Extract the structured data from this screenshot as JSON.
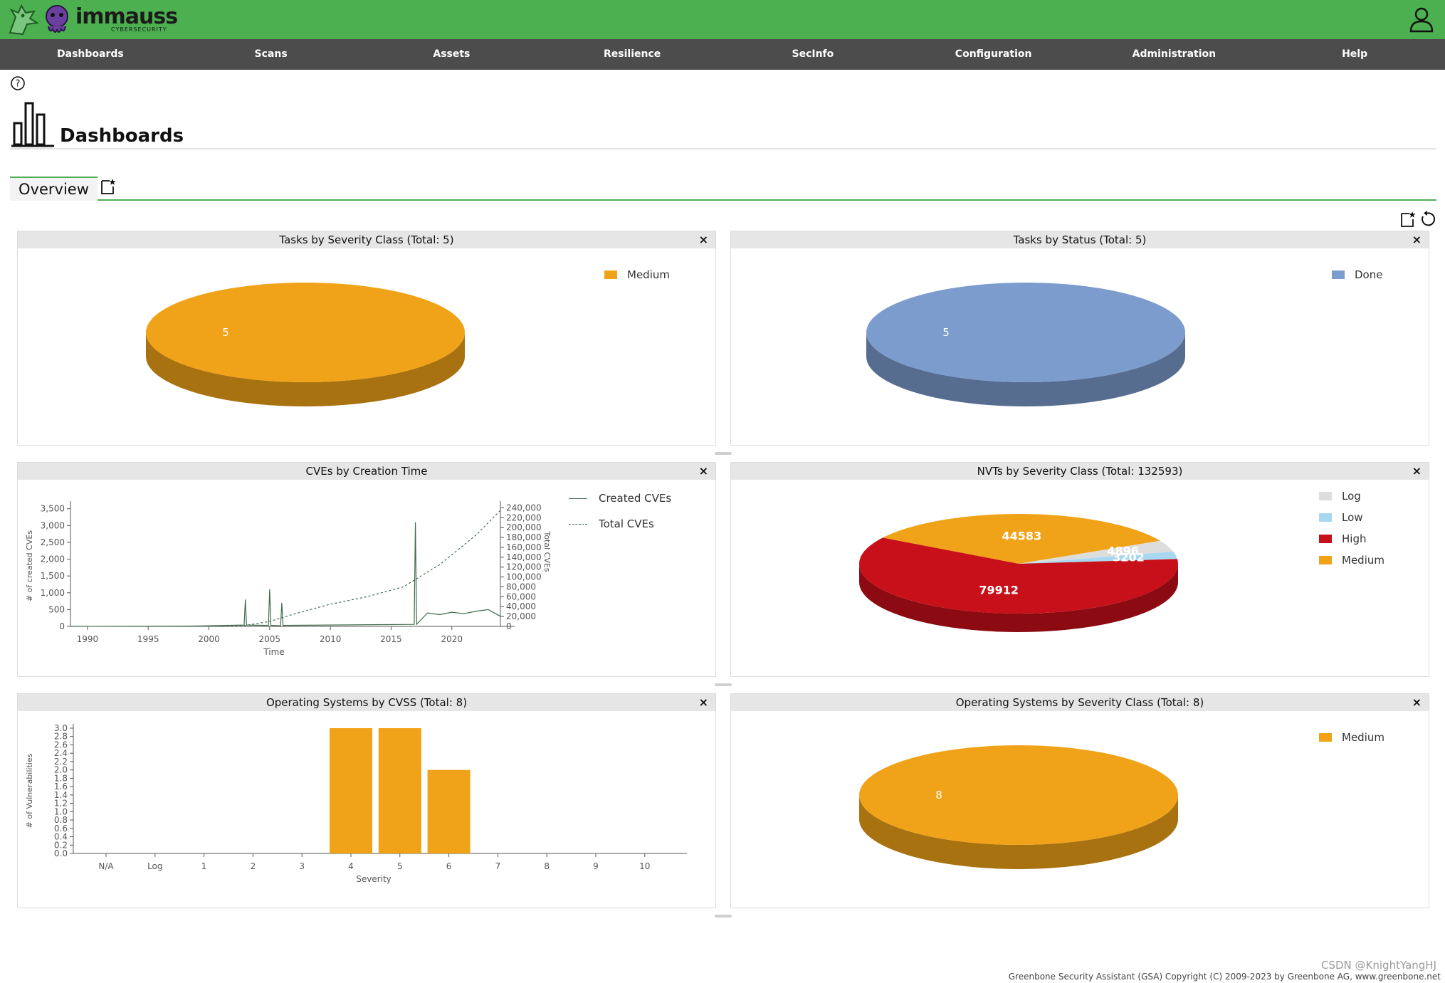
{
  "header": {
    "brand": "immauss",
    "brand_sub": "CYBERSECURITY"
  },
  "nav": [
    "Dashboards",
    "Scans",
    "Assets",
    "Resilience",
    "SecInfo",
    "Configuration",
    "Administration",
    "Help"
  ],
  "page": {
    "title": "Dashboards",
    "tab": "Overview"
  },
  "panels": {
    "p1": {
      "title": "Tasks by Severity Class (Total: 5)",
      "close": "×"
    },
    "p2": {
      "title": "Tasks by Status (Total: 5)",
      "close": "×"
    },
    "p3": {
      "title": "CVEs by Creation Time",
      "close": "×"
    },
    "p4": {
      "title": "NVTs by Severity Class (Total: 132593)",
      "close": "×"
    },
    "p5": {
      "title": "Operating Systems by CVSS (Total: 8)",
      "close": "×"
    },
    "p6": {
      "title": "Operating Systems by Severity Class (Total: 8)",
      "close": "×"
    }
  },
  "chart_data": [
    {
      "type": "pie",
      "title": "Tasks by Severity Class (Total: 5)",
      "slices": [
        {
          "label": "Medium",
          "value": 5,
          "color": "#f0a318"
        }
      ]
    },
    {
      "type": "pie",
      "title": "Tasks by Status (Total: 5)",
      "slices": [
        {
          "label": "Done",
          "value": 5,
          "color": "#7b9ccd"
        }
      ]
    },
    {
      "type": "line",
      "title": "CVEs by Creation Time",
      "xlabel": "Time",
      "ylabel": "# of created CVEs",
      "y2label": "Total CVEs",
      "x_ticks": [
        "1990",
        "1995",
        "2000",
        "2005",
        "2010",
        "2015",
        "2020"
      ],
      "y_ticks": [
        "0",
        "500",
        "1,000",
        "1,500",
        "2,000",
        "2,500",
        "3,000",
        "3,500"
      ],
      "y2_ticks": [
        "0",
        "20,000",
        "40,000",
        "60,000",
        "80,000",
        "100,000",
        "120,000",
        "140,000",
        "160,000",
        "180,000",
        "200,000",
        "220,000",
        "240,000"
      ],
      "xlim": [
        1988.6,
        2024.0
      ],
      "ylim": [
        0,
        3600
      ],
      "y2lim": [
        0,
        245000
      ],
      "series": [
        {
          "name": "Created CVEs",
          "style": "solid",
          "x": [
            1988.6,
            1999,
            2002.9,
            2003.0,
            2003.1,
            2004.9,
            2005.0,
            2005.1,
            2005.9,
            2006.0,
            2006.1,
            2016.9,
            2017.0,
            2017.1,
            2018.0,
            2019.0,
            2020.0,
            2021.0,
            2022.0,
            2023.0,
            2024.0
          ],
          "y": [
            0,
            10,
            40,
            800,
            40,
            30,
            1100,
            30,
            20,
            700,
            30,
            60,
            3100,
            60,
            400,
            350,
            420,
            380,
            450,
            500,
            300
          ]
        },
        {
          "name": "Total CVEs",
          "style": "dashed",
          "x": [
            1999,
            2003,
            2005,
            2007,
            2010,
            2013,
            2016,
            2017,
            2018,
            2019,
            2020,
            2021,
            2022,
            2023,
            2024
          ],
          "y": [
            0,
            2000,
            10000,
            25000,
            45000,
            60000,
            80000,
            95000,
            110000,
            125000,
            145000,
            165000,
            185000,
            210000,
            235000
          ]
        }
      ]
    },
    {
      "type": "pie",
      "title": "NVTs by Severity Class (Total: 132593)",
      "slices": [
        {
          "label": "Log",
          "value": 4896,
          "color": "#dddddd"
        },
        {
          "label": "Low",
          "value": 3202,
          "color": "#a8d8f0"
        },
        {
          "label": "High",
          "value": 79912,
          "color": "#c8101a"
        },
        {
          "label": "Medium",
          "value": 44583,
          "color": "#f0a318"
        }
      ]
    },
    {
      "type": "bar",
      "title": "Operating Systems by CVSS (Total: 8)",
      "xlabel": "Severity",
      "ylabel": "# of Vulnerabilities",
      "categories": [
        "N/A",
        "Log",
        "1",
        "2",
        "3",
        "4",
        "5",
        "6",
        "7",
        "8",
        "9",
        "10"
      ],
      "values": [
        0,
        0,
        0,
        0,
        0,
        3,
        3,
        2,
        0,
        0,
        0,
        0
      ],
      "ylim": [
        0,
        3.0
      ],
      "y_ticks": [
        "0.0",
        "0.2",
        "0.4",
        "0.6",
        "0.8",
        "1.0",
        "1.2",
        "1.4",
        "1.6",
        "1.8",
        "2.0",
        "2.2",
        "2.4",
        "2.6",
        "2.8",
        "3.0"
      ],
      "color": "#f0a318"
    },
    {
      "type": "pie",
      "title": "Operating Systems by Severity Class (Total: 8)",
      "slices": [
        {
          "label": "Medium",
          "value": 8,
          "color": "#f0a318"
        }
      ]
    }
  ],
  "footer": {
    "copyright": "Greenbone Security Assistant (GSA) Copyright (C) 2009-2023 by Greenbone AG, www.greenbone.net",
    "watermark": "CSDN @KnightYangHJ"
  },
  "colors": {
    "topbar": "#4caf50",
    "navbar": "#4c4c4c",
    "medium": "#f0a318",
    "high": "#c8101a",
    "low": "#a8d8f0",
    "log": "#dddddd",
    "done": "#7b9ccd"
  }
}
